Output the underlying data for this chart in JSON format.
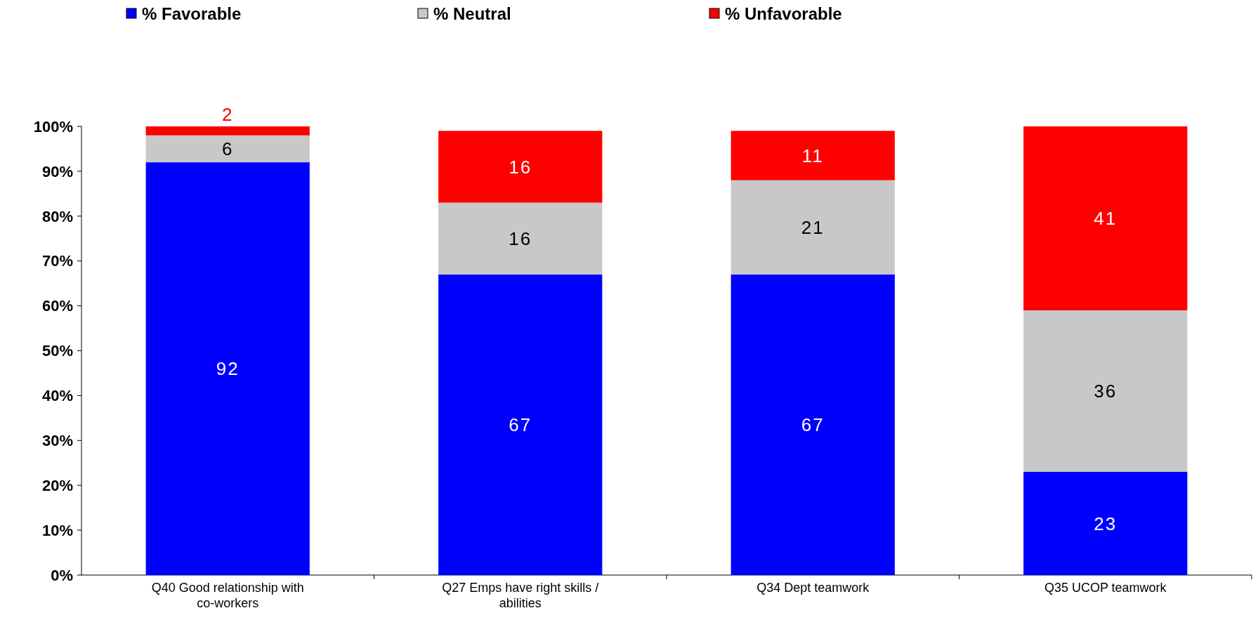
{
  "chart_data": {
    "type": "bar",
    "stacked": true,
    "categories": [
      "Q40 Good relationship with co-workers",
      "Q27 Emps have right skills / abilities",
      "Q34 Dept teamwork",
      "Q35 UCOP teamwork"
    ],
    "series": [
      {
        "name": "% Favorable",
        "color": "#0000ff",
        "values": [
          92,
          67,
          67,
          23
        ]
      },
      {
        "name": "% Neutral",
        "color": "#c8c8c8",
        "values": [
          6,
          16,
          21,
          36
        ]
      },
      {
        "name": "% Unfavorable",
        "color": "#ff0000",
        "values": [
          2,
          16,
          11,
          41
        ]
      }
    ],
    "ylim": [
      0,
      100
    ],
    "yticks": [
      {
        "value": 0,
        "label": "0%"
      },
      {
        "value": 10,
        "label": "10%"
      },
      {
        "value": 20,
        "label": "20%"
      },
      {
        "value": 30,
        "label": "30%"
      },
      {
        "value": 40,
        "label": "40%"
      },
      {
        "value": 50,
        "label": "50%"
      },
      {
        "value": 60,
        "label": "60%"
      },
      {
        "value": 70,
        "label": "70%"
      },
      {
        "value": 80,
        "label": "80%"
      },
      {
        "value": 90,
        "label": "90%"
      },
      {
        "value": 100,
        "label": "100%"
      }
    ],
    "data_labels": true,
    "legend": "top"
  }
}
